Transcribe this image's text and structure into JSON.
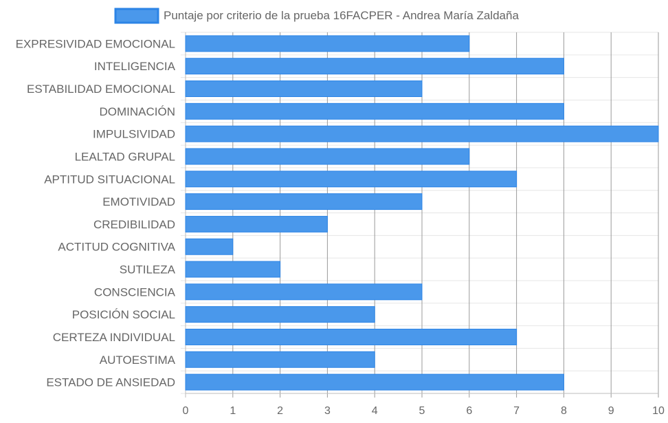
{
  "chart_data": {
    "type": "bar",
    "orientation": "horizontal",
    "title": "",
    "xlabel": "",
    "ylabel": "",
    "xlim": [
      0,
      10
    ],
    "x_ticks": [
      "0",
      "1",
      "2",
      "3",
      "4",
      "5",
      "6",
      "7",
      "8",
      "9",
      "10"
    ],
    "grid": true,
    "legend_position": "top",
    "categories": [
      "EXPRESIVIDAD EMOCIONAL",
      "INTELIGENCIA",
      "ESTABILIDAD EMOCIONAL",
      "DOMINACIÓN",
      "IMPULSIVIDAD",
      "LEALTAD GRUPAL",
      "APTITUD SITUACIONAL",
      "EMOTIVIDAD",
      "CREDIBILIDAD",
      "ACTITUD COGNITIVA",
      "SUTILEZA",
      "CONSCIENCIA",
      "POSICIÓN SOCIAL",
      "CERTEZA INDIVIDUAL",
      "AUTOESTIMA",
      "ESTADO DE ANSIEDAD"
    ],
    "series": [
      {
        "name": "Puntaje por criterio de la prueba 16FACPER - Andrea María Zaldaña",
        "values": [
          6,
          8,
          5,
          8,
          10,
          6,
          7,
          5,
          3,
          1,
          2,
          5,
          4,
          7,
          4,
          8
        ],
        "color": "#4a98eb",
        "border_color": "#2c84e6"
      }
    ]
  },
  "colors": {
    "grid_light": "#e6e6e6",
    "grid_dark": "#9a9a9a",
    "axis": "#bdbdbd",
    "label_text": "#666666",
    "legend_text": "#666666"
  }
}
